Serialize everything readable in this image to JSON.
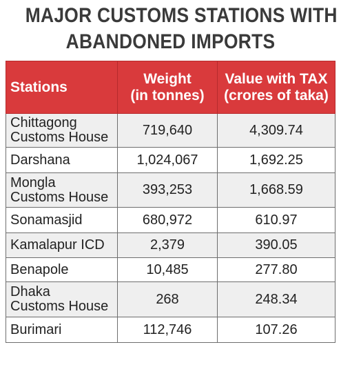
{
  "chart_data": {
    "type": "table",
    "title_lines": [
      "MAJOR CUSTOMS STATIONS WITH",
      "ABANDONED IMPORTS"
    ],
    "columns": [
      {
        "line1": "Stations",
        "line2": ""
      },
      {
        "line1": "Weight",
        "line2": "(in tonnes)"
      },
      {
        "line1": "Value with TAX",
        "line2": "(crores of taka)"
      }
    ],
    "rows": [
      {
        "station_lines": [
          "Chittagong",
          "Customs House"
        ],
        "weight": "719,640",
        "value": "4,309.74"
      },
      {
        "station_lines": [
          "Darshana"
        ],
        "weight": "1,024,067",
        "value": "1,692.25"
      },
      {
        "station_lines": [
          "Mongla",
          "Customs House"
        ],
        "weight": "393,253",
        "value": "1,668.59"
      },
      {
        "station_lines": [
          "Sonamasjid"
        ],
        "weight": "680,972",
        "value": "610.97"
      },
      {
        "station_lines": [
          "Kamalapur ICD"
        ],
        "weight": "2,379",
        "value": "390.05"
      },
      {
        "station_lines": [
          "Benapole"
        ],
        "weight": "10,485",
        "value": "277.80"
      },
      {
        "station_lines": [
          "Dhaka",
          "Customs House"
        ],
        "weight": "268",
        "value": "248.34"
      },
      {
        "station_lines": [
          "Burimari"
        ],
        "weight": "112,746",
        "value": "107.26"
      }
    ],
    "colors": {
      "header_bg": "#d93a3c",
      "header_text": "#ffffff",
      "title_text": "#3a3a3a",
      "row_alt_bg": "#efefef",
      "border": "#6d6d6d"
    }
  }
}
